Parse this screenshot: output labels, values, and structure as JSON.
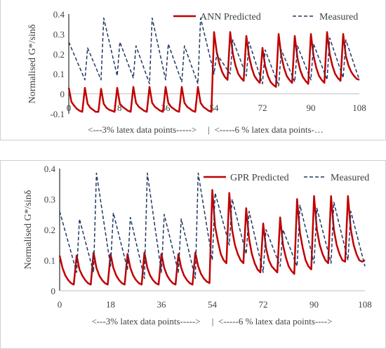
{
  "chart_data": [
    {
      "type": "line",
      "title": "",
      "xlabel": "<---3% latex data points----->     |  <-----6 % latex data points-…",
      "ylabel": "Normalised  G*/sinδ",
      "xlim": [
        0,
        108
      ],
      "ylim": [
        -0.1,
        0.4
      ],
      "x_ticks": [
        "0",
        "18",
        "36",
        "54",
        "72",
        "90",
        "108"
      ],
      "y_ticks": [
        "-0.1",
        "0",
        "0.1",
        "0.2",
        "0.3",
        "0.4"
      ],
      "legend_position": "top-right",
      "grid": false,
      "series": [
        {
          "name": "ANN Predicted",
          "color": "#c00000",
          "style": "solid",
          "x": [
            0,
            1,
            2,
            3,
            4,
            5,
            6,
            7,
            8,
            9,
            10,
            11,
            12,
            13,
            14,
            15,
            16,
            17,
            18,
            19,
            20,
            21,
            22,
            23,
            24,
            25,
            26,
            27,
            28,
            29,
            30,
            31,
            32,
            33,
            34,
            35,
            36,
            37,
            38,
            39,
            40,
            41,
            42,
            43,
            44,
            45,
            46,
            47,
            48,
            49,
            50,
            51,
            52,
            53,
            54,
            55,
            56,
            57,
            58,
            59,
            60,
            61,
            62,
            63,
            64,
            65,
            66,
            67,
            68,
            69,
            70,
            71,
            72,
            73,
            74,
            75,
            76,
            77,
            78,
            79,
            80,
            81,
            82,
            83,
            84,
            85,
            86,
            87,
            88,
            89,
            90,
            91,
            92,
            93,
            94,
            95,
            96,
            97,
            98,
            99,
            100,
            101,
            102,
            103,
            104,
            105,
            106,
            107,
            108
          ],
          "y": [
            0.03,
            -0.04,
            -0.06,
            -0.075,
            -0.085,
            -0.09,
            0.03,
            -0.05,
            -0.07,
            -0.08,
            -0.09,
            -0.09,
            0.025,
            -0.05,
            -0.07,
            -0.08,
            -0.085,
            -0.09,
            0.03,
            -0.05,
            -0.065,
            -0.075,
            -0.085,
            -0.09,
            0.035,
            -0.045,
            -0.065,
            -0.075,
            -0.085,
            -0.09,
            0.035,
            -0.045,
            -0.065,
            -0.075,
            -0.085,
            -0.09,
            0.035,
            -0.045,
            -0.065,
            -0.075,
            -0.085,
            -0.09,
            0.035,
            -0.045,
            -0.065,
            -0.075,
            -0.085,
            -0.09,
            0.035,
            -0.045,
            -0.065,
            -0.075,
            -0.085,
            -0.09,
            0.31,
            0.21,
            0.15,
            0.11,
            0.085,
            0.07,
            0.31,
            0.2,
            0.14,
            0.1,
            0.08,
            0.065,
            0.29,
            0.19,
            0.13,
            0.09,
            0.07,
            0.055,
            0.23,
            0.14,
            0.09,
            0.06,
            0.045,
            0.035,
            0.3,
            0.19,
            0.13,
            0.09,
            0.07,
            0.055,
            0.29,
            0.18,
            0.12,
            0.085,
            0.065,
            0.05,
            0.3,
            0.19,
            0.13,
            0.09,
            0.07,
            0.055,
            0.31,
            0.2,
            0.14,
            0.1,
            0.08,
            0.065,
            0.3,
            0.19,
            0.14,
            0.11,
            0.09,
            0.075,
            0.07
          ]
        },
        {
          "name": "Measured",
          "color": "#1f3864",
          "style": "dashed",
          "x": [
            0,
            6,
            7,
            12,
            13,
            18,
            19,
            24,
            25,
            30,
            31,
            36,
            37,
            42,
            43,
            48,
            49,
            54,
            55,
            60,
            61,
            66,
            67,
            72,
            73,
            78,
            79,
            84,
            85,
            90,
            91,
            96,
            97,
            102,
            103,
            108
          ],
          "y": [
            0.26,
            0.07,
            0.23,
            0.07,
            0.38,
            0.09,
            0.26,
            0.08,
            0.24,
            0.05,
            0.38,
            0.07,
            0.25,
            0.06,
            0.24,
            0.05,
            0.38,
            0.1,
            0.2,
            0.1,
            0.27,
            0.09,
            0.26,
            0.05,
            0.22,
            0.04,
            0.22,
            0.06,
            0.24,
            0.07,
            0.25,
            0.07,
            0.28,
            0.08,
            0.27,
            0.07
          ]
        }
      ]
    },
    {
      "type": "line",
      "title": "",
      "xlabel": "<---3% latex data points----->     |  <-----6 % latex data points---->",
      "ylabel": "Normalised  G*/sinδ",
      "xlim": [
        0,
        108
      ],
      "ylim": [
        0,
        0.4
      ],
      "x_ticks": [
        "0",
        "18",
        "36",
        "54",
        "72",
        "90",
        "108"
      ],
      "y_ticks": [
        "0",
        "0.1",
        "0.2",
        "0.3",
        "0.4"
      ],
      "legend_position": "top-right",
      "grid": false,
      "series": [
        {
          "name": "GPR Predicted",
          "color": "#c00000",
          "style": "solid",
          "x": [
            0,
            1,
            2,
            3,
            4,
            5,
            6,
            7,
            8,
            9,
            10,
            11,
            12,
            13,
            14,
            15,
            16,
            17,
            18,
            19,
            20,
            21,
            22,
            23,
            24,
            25,
            26,
            27,
            28,
            29,
            30,
            31,
            32,
            33,
            34,
            35,
            36,
            37,
            38,
            39,
            40,
            41,
            42,
            43,
            44,
            45,
            46,
            47,
            48,
            49,
            50,
            51,
            52,
            53,
            54,
            55,
            56,
            57,
            58,
            59,
            60,
            61,
            62,
            63,
            64,
            65,
            66,
            67,
            68,
            69,
            70,
            71,
            72,
            73,
            74,
            75,
            76,
            77,
            78,
            79,
            80,
            81,
            82,
            83,
            84,
            85,
            86,
            87,
            88,
            89,
            90,
            91,
            92,
            93,
            94,
            95,
            96,
            97,
            98,
            99,
            100,
            101,
            102,
            103,
            104,
            105,
            106,
            107,
            108
          ],
          "y": [
            0.115,
            0.075,
            0.05,
            0.035,
            0.025,
            0.02,
            0.115,
            0.07,
            0.05,
            0.035,
            0.025,
            0.02,
            0.125,
            0.075,
            0.05,
            0.035,
            0.025,
            0.02,
            0.12,
            0.075,
            0.05,
            0.035,
            0.025,
            0.02,
            0.12,
            0.075,
            0.05,
            0.035,
            0.025,
            0.02,
            0.125,
            0.075,
            0.05,
            0.035,
            0.025,
            0.02,
            0.12,
            0.075,
            0.05,
            0.035,
            0.025,
            0.02,
            0.12,
            0.075,
            0.05,
            0.035,
            0.025,
            0.02,
            0.125,
            0.08,
            0.055,
            0.04,
            0.03,
            0.025,
            0.33,
            0.21,
            0.16,
            0.12,
            0.1,
            0.09,
            0.32,
            0.2,
            0.15,
            0.12,
            0.1,
            0.09,
            0.27,
            0.17,
            0.12,
            0.09,
            0.07,
            0.06,
            0.22,
            0.14,
            0.1,
            0.08,
            0.07,
            0.06,
            0.24,
            0.15,
            0.11,
            0.08,
            0.065,
            0.055,
            0.3,
            0.19,
            0.14,
            0.1,
            0.08,
            0.07,
            0.31,
            0.2,
            0.15,
            0.12,
            0.1,
            0.09,
            0.31,
            0.2,
            0.15,
            0.12,
            0.1,
            0.095,
            0.31,
            0.2,
            0.15,
            0.12,
            0.1,
            0.095,
            0.1
          ]
        },
        {
          "name": "Measured",
          "color": "#1f3864",
          "style": "dashed",
          "x": [
            0,
            6,
            7,
            12,
            13,
            18,
            19,
            24,
            25,
            30,
            31,
            36,
            37,
            42,
            43,
            48,
            49,
            54,
            55,
            60,
            61,
            66,
            67,
            72,
            73,
            78,
            79,
            84,
            85,
            90,
            91,
            96,
            97,
            102,
            103,
            108
          ],
          "y": [
            0.26,
            0.06,
            0.235,
            0.06,
            0.385,
            0.08,
            0.255,
            0.07,
            0.24,
            0.04,
            0.385,
            0.06,
            0.25,
            0.06,
            0.235,
            0.04,
            0.385,
            0.1,
            0.32,
            0.15,
            0.3,
            0.12,
            0.26,
            0.06,
            0.2,
            0.08,
            0.2,
            0.08,
            0.28,
            0.09,
            0.27,
            0.09,
            0.29,
            0.1,
            0.26,
            0.08
          ]
        }
      ]
    }
  ]
}
